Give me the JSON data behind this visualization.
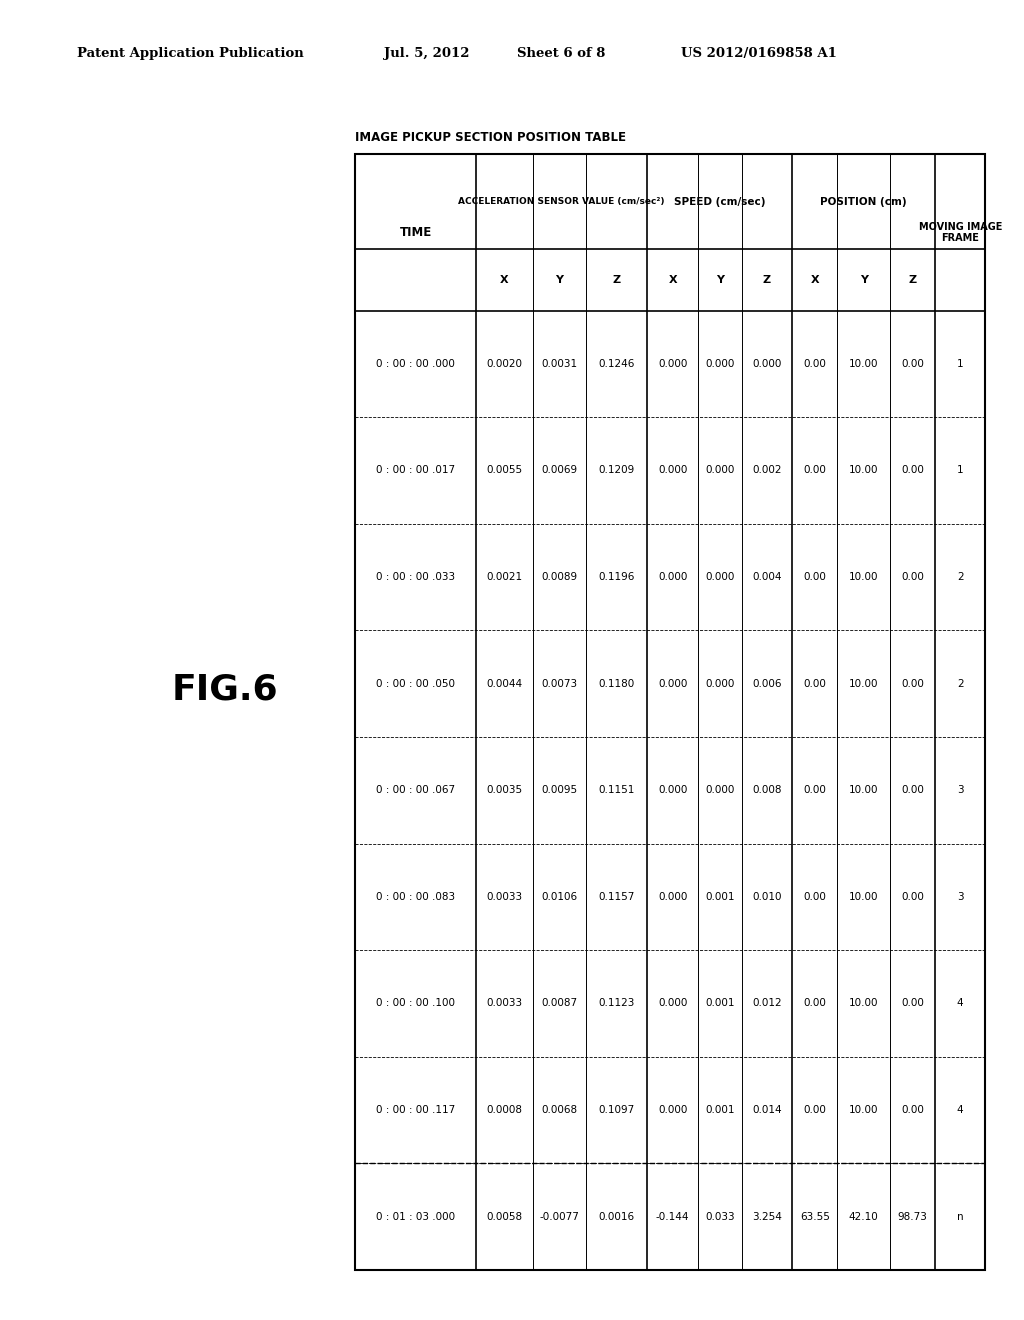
{
  "header_text": "Patent Application Publication",
  "date_text": "Jul. 5, 2012",
  "sheet_text": "Sheet 6 of 8",
  "patent_text": "US 2012/0169858 A1",
  "fig_label": "FIG.6",
  "table_title": "IMAGE PICKUP SECTION POSITION TABLE",
  "time_rows": [
    "0 : 00 : 00 .000",
    "0 : 00 : 00 .017",
    "0 : 00 : 00 .033",
    "0 : 00 : 00 .050",
    "0 : 00 : 00 .067",
    "0 : 00 : 00 .083",
    "0 : 00 : 00 .100",
    "0 : 00 : 00 .117",
    "0 : 01 : 03 .000"
  ],
  "accel_x_rows": [
    "0.0020",
    "0.0055",
    "0.0021",
    "0.0044",
    "0.0035",
    "0.0033",
    "0.0033",
    "0.0008",
    "0.0058"
  ],
  "accel_y_rows": [
    "0.0031",
    "0.0069",
    "0.0089",
    "0.0073",
    "0.0095",
    "0.0106",
    "0.0087",
    "0.0068",
    "-0.0077"
  ],
  "accel_z_rows": [
    "0.1246",
    "0.1209",
    "0.1196",
    "0.1180",
    "0.1151",
    "0.1157",
    "0.1123",
    "0.1097",
    "0.0016"
  ],
  "speed_x_rows": [
    "0.000",
    "0.000",
    "0.000",
    "0.000",
    "0.000",
    "0.000",
    "0.000",
    "0.000",
    "-0.144"
  ],
  "speed_y_rows": [
    "0.000",
    "0.000",
    "0.000",
    "0.000",
    "0.000",
    "0.001",
    "0.001",
    "0.001",
    "0.033"
  ],
  "speed_z_rows": [
    "0.000",
    "0.002",
    "0.004",
    "0.006",
    "0.008",
    "0.010",
    "0.012",
    "0.014",
    "3.254"
  ],
  "pos_x_rows": [
    "0.00",
    "0.00",
    "0.00",
    "0.00",
    "0.00",
    "0.00",
    "0.00",
    "0.00",
    "63.55"
  ],
  "pos_y_rows": [
    "10.00",
    "10.00",
    "10.00",
    "10.00",
    "10.00",
    "10.00",
    "10.00",
    "10.00",
    "42.10"
  ],
  "pos_z_rows": [
    "0.00",
    "0.00",
    "0.00",
    "0.00",
    "0.00",
    "0.00",
    "0.00",
    "0.00",
    "98.73"
  ],
  "moving_frame_rows": [
    "1",
    "1",
    "2",
    "2",
    "3",
    "3",
    "4",
    "4",
    "n"
  ],
  "bg_color": "#ffffff",
  "text_color": "#000000"
}
